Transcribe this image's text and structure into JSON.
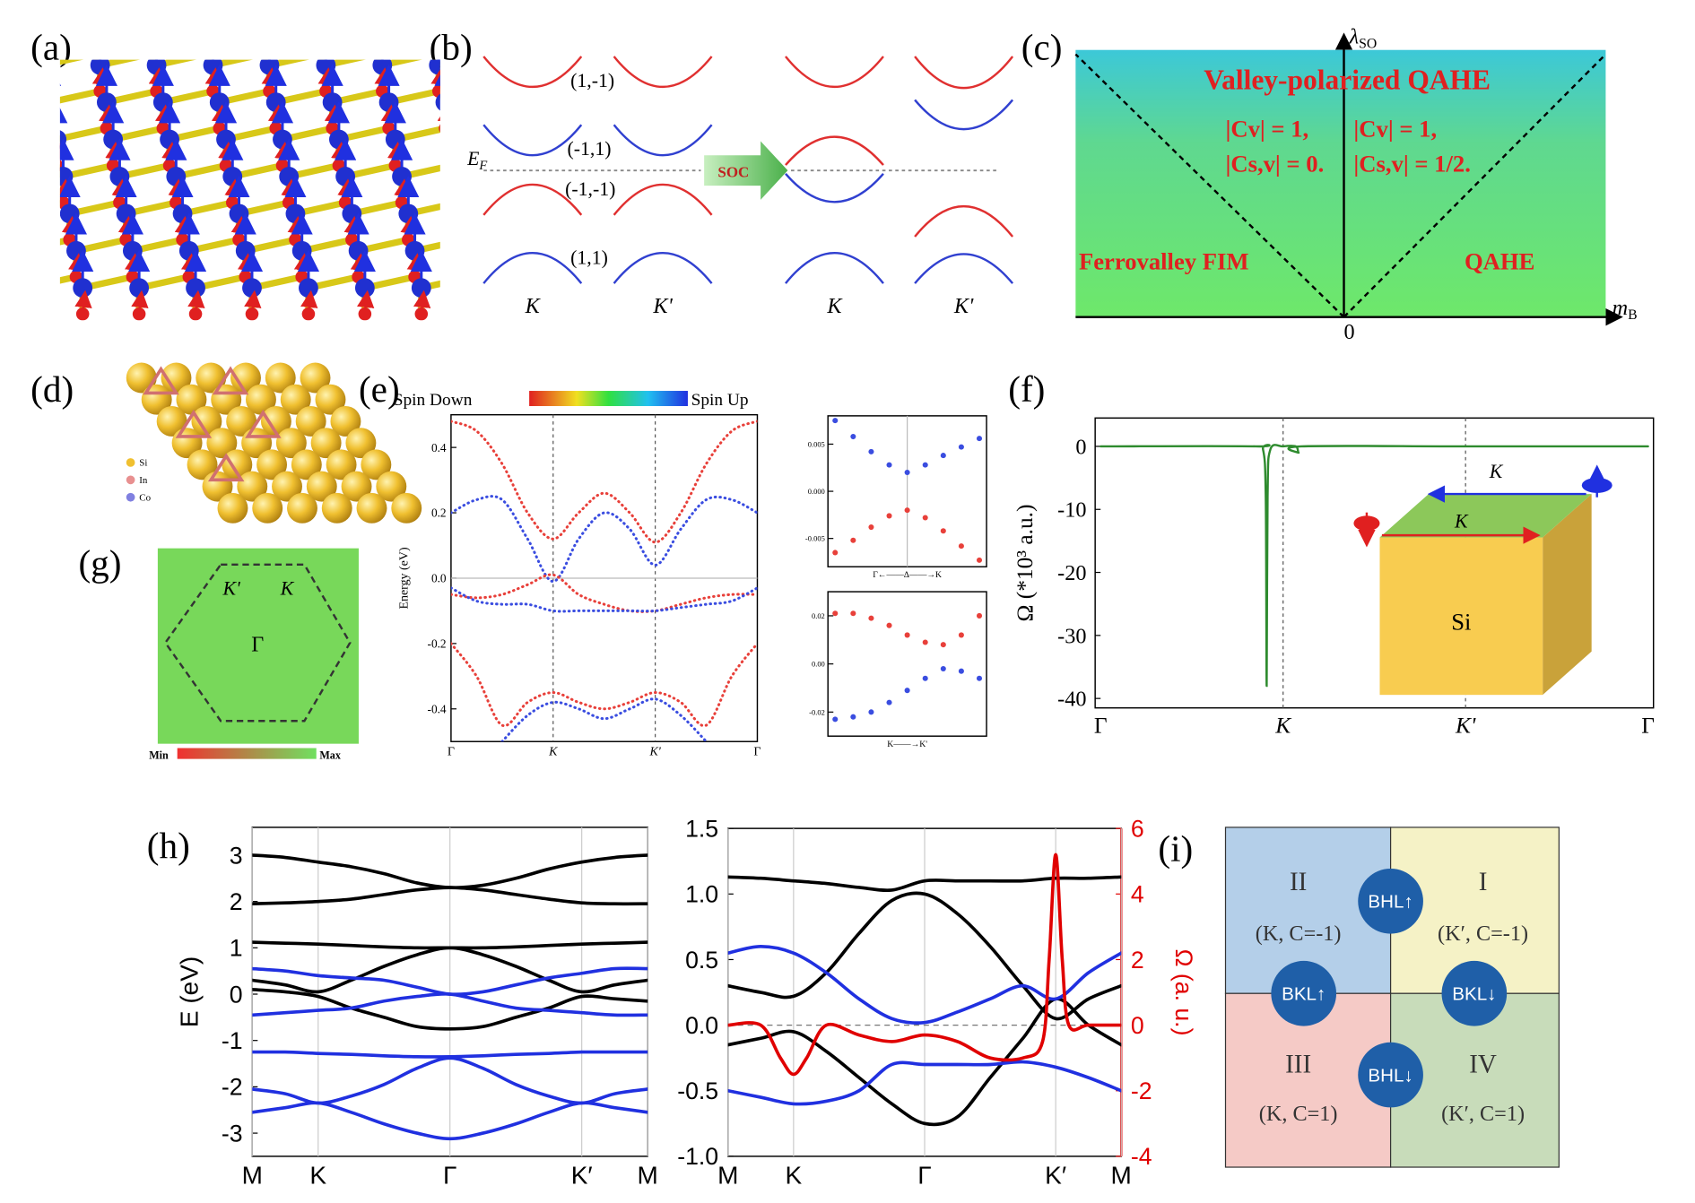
{
  "panels": {
    "a": {
      "label": "(a)"
    },
    "b": {
      "label": "(b)",
      "bands": [
        "(1,-1)",
        "(-1,1)",
        "(-1,-1)",
        "(1,1)"
      ],
      "fermi": {
        "symbol": "E",
        "sub": "F"
      },
      "arrow": "SOC",
      "valleys": [
        "K",
        "K'",
        "K",
        "K'"
      ]
    },
    "c": {
      "label": "(c)",
      "y_axis": {
        "symbol": "λ",
        "sub": "SO"
      },
      "x_axis": {
        "symbol": "m",
        "sub": "B"
      },
      "origin": "0",
      "title": "Valley-polarized QAHE",
      "left_chern": [
        "|Cv| = 1,",
        "|Cs,v| = 0."
      ],
      "right_chern": [
        "|Cv| = 1,",
        "|Cs,v| = 1/2."
      ],
      "left_phase": "Ferrovalley FIM",
      "right_phase": "QAHE"
    },
    "d": {
      "label": "(d)",
      "legend": [
        "Si",
        "In",
        "Co"
      ]
    },
    "e": {
      "label": "(e)",
      "colorbar": [
        "Spin Down",
        "Spin Up"
      ]
    },
    "f": {
      "label": "(f)",
      "inset": {
        "top_arrow": "K",
        "bottom_arrow": "K",
        "block": "Si"
      }
    },
    "g": {
      "label": "(g)",
      "points": [
        "K'",
        "K",
        "Γ"
      ],
      "colorbar": [
        "Min",
        "Max"
      ]
    },
    "h": {
      "label": "(h)"
    },
    "i": {
      "label": "(i)",
      "regions": [
        {
          "numeral": "II",
          "text": "(K, C=-1)"
        },
        {
          "numeral": "I",
          "text": "(K′, C=-1)"
        },
        {
          "numeral": "III",
          "text": "(K, C=1)"
        },
        {
          "numeral": "IV",
          "text": "(K′, C=1)"
        }
      ],
      "states": [
        "BHL↑",
        "BKL↑",
        "BKL↓",
        "BHL↓"
      ]
    }
  },
  "chart_data": [
    {
      "type": "line",
      "line_style": "dotted",
      "ylabel": "Energy (eV)",
      "xlim": [
        0,
        3
      ],
      "ylim": [
        -0.5,
        0.5
      ],
      "xticks": [
        {
          "value": 0,
          "label": "Γ"
        },
        {
          "value": 1,
          "label": "K"
        },
        {
          "value": 2,
          "label": "K'"
        },
        {
          "value": 3,
          "label": "Γ"
        }
      ],
      "yticks": [
        0.4,
        0.2,
        {
          "value": 0,
          "label": "0.0"
        },
        -0.2,
        -0.4
      ],
      "xgrid": true,
      "grid_style": "dashed",
      "zero_line": true,
      "x": [
        0,
        0.25,
        0.5,
        0.75,
        1,
        1.25,
        1.5,
        1.75,
        2,
        2.25,
        2.5,
        2.75,
        3
      ],
      "series": [
        {
          "color": "#e8403a",
          "values": [
            0.48,
            0.45,
            0.35,
            0.2,
            0.12,
            0.2,
            0.26,
            0.2,
            0.11,
            0.2,
            0.35,
            0.45,
            0.48
          ]
        },
        {
          "color": "#3a4de0",
          "values": [
            0.2,
            0.24,
            0.24,
            0.12,
            -0.01,
            0.12,
            0.2,
            0.15,
            0.04,
            0.15,
            0.24,
            0.24,
            0.2
          ]
        },
        {
          "color": "#e8403a",
          "values": [
            -0.05,
            -0.06,
            -0.05,
            -0.02,
            0.01,
            -0.05,
            -0.08,
            -0.1,
            -0.1,
            -0.08,
            -0.06,
            -0.05,
            -0.05
          ]
        },
        {
          "color": "#3a4de0",
          "values": [
            -0.03,
            -0.07,
            -0.08,
            -0.08,
            -0.1,
            -0.1,
            -0.1,
            -0.1,
            -0.1,
            -0.09,
            -0.08,
            -0.07,
            -0.03
          ]
        },
        {
          "color": "#e8403a",
          "values": [
            -0.2,
            -0.3,
            -0.45,
            -0.38,
            -0.35,
            -0.38,
            -0.4,
            -0.38,
            -0.35,
            -0.38,
            -0.45,
            -0.3,
            -0.2
          ]
        },
        {
          "color": "#3a4de0",
          "values": [
            null,
            null,
            -0.5,
            -0.42,
            -0.38,
            -0.4,
            -0.43,
            -0.4,
            -0.37,
            -0.42,
            -0.5,
            null,
            null
          ]
        }
      ]
    },
    {
      "type": "scatter",
      "xlabel": "Γ←——Δ——→K",
      "xlim": [
        -1.1,
        1.1
      ],
      "ylim": [
        -0.008,
        0.008
      ],
      "yticks": [
        0.005,
        {
          "value": 0,
          "label": "0.000"
        },
        -0.005
      ],
      "xgrid_center": true,
      "x": [
        -1,
        -0.75,
        -0.5,
        -0.25,
        0,
        0.25,
        0.5,
        0.75,
        1
      ],
      "series": [
        {
          "color": "#3a4de0",
          "values": [
            0.0075,
            0.0058,
            0.0042,
            0.0028,
            0.002,
            0.0028,
            0.0038,
            0.0047,
            0.0056
          ]
        },
        {
          "color": "#e8403a",
          "values": [
            -0.0065,
            -0.0052,
            -0.0038,
            -0.0026,
            -0.002,
            -0.0028,
            -0.0042,
            -0.0058,
            -0.0073
          ]
        }
      ]
    },
    {
      "type": "scatter",
      "xlabel": "K——→K'",
      "xlim": [
        -0.05,
        1.05
      ],
      "ylim": [
        -0.03,
        0.03
      ],
      "yticks": [
        0.02,
        {
          "value": 0,
          "label": "0.00"
        },
        -0.02
      ],
      "x": [
        0,
        0.125,
        0.25,
        0.375,
        0.5,
        0.625,
        0.75,
        0.875,
        1
      ],
      "series": [
        {
          "color": "#e8403a",
          "values": [
            0.021,
            0.021,
            0.019,
            0.016,
            0.012,
            0.009,
            0.008,
            0.012,
            0.02
          ]
        },
        {
          "color": "#3a4de0",
          "values": [
            -0.023,
            -0.022,
            -0.02,
            -0.016,
            -0.011,
            -0.006,
            -0.002,
            -0.003,
            -0.006
          ]
        }
      ]
    },
    {
      "type": "line",
      "ylabel": "Ω (*10³ a.u.)",
      "xlim": [
        -0.03,
        3.03
      ],
      "ylim": [
        -41.5,
        4.5
      ],
      "xticks": [
        {
          "value": 0,
          "label": "Γ"
        },
        {
          "value": 1,
          "label": "K"
        },
        {
          "value": 2,
          "label": "K'"
        },
        {
          "value": 3,
          "label": "Γ"
        }
      ],
      "yticks": [
        0,
        -10,
        -20,
        -30,
        -40
      ],
      "xgrid": true,
      "grid_style": "dashed",
      "grid_skip_ends": true,
      "series": [
        {
          "color": "#2e8b2e",
          "x": [
            0,
            0.85,
            0.89,
            0.905,
            0.91,
            0.915,
            0.93,
            1,
            1.07,
            1.085,
            1.1,
            2,
            3
          ],
          "values": [
            0,
            0,
            -0.5,
            -8,
            -38,
            -8,
            -0.5,
            0,
            0,
            -1,
            0,
            0,
            0
          ]
        }
      ]
    },
    {
      "type": "line",
      "ylabel": "E (eV)",
      "xlim": [
        0,
        3
      ],
      "ylim": [
        -3.5,
        3.6
      ],
      "xticks": [
        {
          "value": 0,
          "label": "M"
        },
        {
          "value": 0.5,
          "label": "K"
        },
        {
          "value": 1.5,
          "label": "Γ"
        },
        {
          "value": 2.5,
          "label": "K′"
        },
        {
          "value": 3,
          "label": "M"
        }
      ],
      "yticks": [
        3,
        2,
        1,
        0,
        -1,
        -2,
        -3
      ],
      "xgrid": true,
      "x": [
        0,
        0.25,
        0.5,
        0.75,
        1,
        1.25,
        1.5,
        1.75,
        2,
        2.25,
        2.5,
        2.75,
        3
      ],
      "series": [
        {
          "color": "#000000",
          "values": [
            3.0,
            2.95,
            2.85,
            2.75,
            2.6,
            2.4,
            2.3,
            2.35,
            2.5,
            2.7,
            2.85,
            2.95,
            3.0
          ]
        },
        {
          "color": "#000000",
          "values": [
            1.95,
            1.97,
            2.0,
            2.05,
            2.15,
            2.25,
            2.3,
            2.25,
            2.15,
            2.05,
            1.97,
            1.95,
            1.95
          ]
        },
        {
          "color": "#000000",
          "values": [
            1.12,
            1.1,
            1.08,
            1.05,
            1.02,
            1.0,
            1.0,
            1.0,
            1.02,
            1.05,
            1.08,
            1.1,
            1.12
          ]
        },
        {
          "color": "#000000",
          "values": [
            0.3,
            0.2,
            0.05,
            0.3,
            0.6,
            0.85,
            1.0,
            0.85,
            0.6,
            0.3,
            0.05,
            0.2,
            0.3
          ]
        },
        {
          "color": "#000000",
          "values": [
            0.1,
            0.05,
            -0.05,
            -0.3,
            -0.5,
            -0.7,
            -0.75,
            -0.7,
            -0.5,
            -0.3,
            -0.05,
            -0.1,
            -0.15
          ]
        },
        {
          "color": "#2030e0",
          "values": [
            0.55,
            0.5,
            0.4,
            0.35,
            0.3,
            0.15,
            0.0,
            0.05,
            0.2,
            0.35,
            0.45,
            0.55,
            0.55
          ]
        },
        {
          "color": "#2030e0",
          "values": [
            -0.45,
            -0.4,
            -0.35,
            -0.3,
            -0.15,
            -0.05,
            0,
            -0.15,
            -0.3,
            -0.35,
            -0.4,
            -0.45,
            -0.45
          ]
        },
        {
          "color": "#2030e0",
          "values": [
            -1.25,
            -1.25,
            -1.28,
            -1.3,
            -1.33,
            -1.35,
            -1.35,
            -1.33,
            -1.3,
            -1.28,
            -1.25,
            -1.25,
            -1.25
          ]
        },
        {
          "color": "#2030e0",
          "values": [
            -2.05,
            -2.15,
            -2.35,
            -2.2,
            -1.95,
            -1.6,
            -1.38,
            -1.6,
            -1.95,
            -2.2,
            -2.35,
            -2.15,
            -2.05
          ]
        },
        {
          "color": "#2030e0",
          "values": [
            -2.55,
            -2.45,
            -2.35,
            -2.55,
            -2.8,
            -3.0,
            -3.12,
            -3.0,
            -2.8,
            -2.55,
            -2.35,
            -2.45,
            -2.55
          ]
        }
      ]
    },
    {
      "type": "line",
      "y2label": "Ω (a. u.)",
      "y2color": "#e00000",
      "xlim": [
        0,
        3
      ],
      "ylim": [
        -1.0,
        1.5
      ],
      "y2lim": [
        -4,
        6
      ],
      "xticks": [
        {
          "value": 0,
          "label": "M"
        },
        {
          "value": 0.5,
          "label": "K"
        },
        {
          "value": 1.5,
          "label": "Γ"
        },
        {
          "value": 2.5,
          "label": "K′"
        },
        {
          "value": 3,
          "label": "M"
        }
      ],
      "yticks": [
        1.5,
        {
          "value": 1,
          "label": "1.0"
        },
        0.5,
        {
          "value": 0,
          "label": "0.0"
        },
        -0.5,
        {
          "value": -1,
          "label": "-1.0"
        }
      ],
      "y2ticks": [
        6,
        4,
        2,
        0,
        -2,
        -4
      ],
      "xgrid": true,
      "zero_line": true,
      "zero_style": "dashed",
      "x": [
        0,
        0.25,
        0.5,
        0.75,
        1,
        1.25,
        1.5,
        1.75,
        2,
        2.25,
        2.5,
        2.75,
        3
      ],
      "series": [
        {
          "color": "#000000",
          "values": [
            1.13,
            1.12,
            1.1,
            1.08,
            1.05,
            1.03,
            1.1,
            1.1,
            1.1,
            1.1,
            1.12,
            1.12,
            1.13
          ]
        },
        {
          "color": "#000000",
          "values": [
            0.3,
            0.25,
            0.22,
            0.4,
            0.7,
            0.95,
            1.0,
            0.85,
            0.6,
            0.3,
            0.05,
            0.2,
            0.3
          ]
        },
        {
          "color": "#000000",
          "values": [
            -0.15,
            -0.1,
            -0.05,
            -0.2,
            -0.4,
            -0.6,
            -0.75,
            -0.7,
            -0.4,
            -0.1,
            0.2,
            0,
            -0.15
          ]
        },
        {
          "color": "#2030e0",
          "values": [
            0.55,
            0.6,
            0.55,
            0.4,
            0.2,
            0.05,
            0.02,
            0.1,
            0.2,
            0.3,
            0.2,
            0.4,
            0.55
          ]
        },
        {
          "color": "#2030e0",
          "values": [
            -0.5,
            -0.55,
            -0.6,
            -0.58,
            -0.5,
            -0.3,
            -0.3,
            -0.3,
            -0.3,
            -0.28,
            -0.32,
            -0.4,
            -0.5
          ]
        },
        {
          "color": "#e00000",
          "axis": "y2",
          "x": [
            0,
            0.25,
            0.4,
            0.5,
            0.6,
            0.75,
            1,
            1.25,
            1.5,
            1.75,
            2,
            2.25,
            2.4,
            2.45,
            2.5,
            2.55,
            2.6,
            2.75,
            3
          ],
          "values": [
            0,
            0,
            -1,
            -1.5,
            -1,
            0,
            -0.3,
            -0.5,
            -0.3,
            -0.5,
            -1,
            -1,
            -0.5,
            2,
            5.2,
            2,
            0,
            0,
            0
          ]
        }
      ]
    }
  ]
}
